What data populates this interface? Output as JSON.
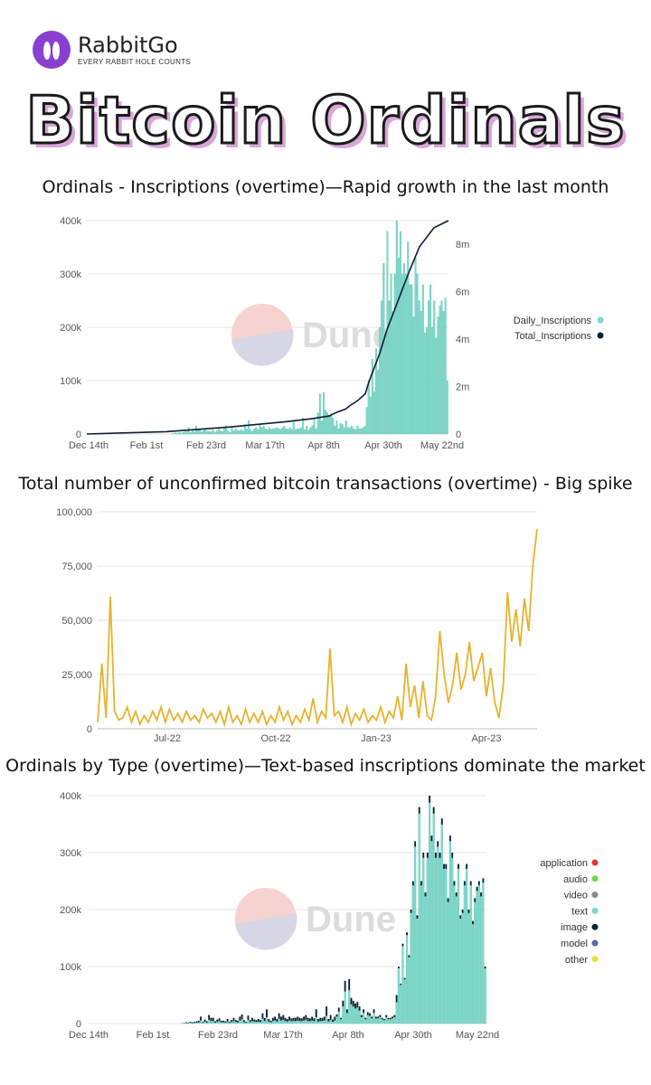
{
  "brand": {
    "name": "RabbitGo",
    "tagline": "EVERY RABBIT HOLE COUNTS"
  },
  "page_title": "Bitcoin Ordinals",
  "watermark": "Dune",
  "colors": {
    "teal": "#7fd8c8",
    "teal_edge": "#5cc3b2",
    "navy": "#0f1d33",
    "gold": "#e6b32e",
    "purple": "#8a3fd1",
    "title_shadow": "#d9a6d9"
  },
  "chart_data": [
    {
      "type": "bar",
      "title": "Ordinals - Inscriptions (overtime)—Rapid growth in the last month",
      "x_tick_labels": [
        "Dec 14th",
        "Feb 1st",
        "Feb 23rd",
        "Mar 17th",
        "Apr 8th",
        "Apr 30th",
        "May 22nd"
      ],
      "y_tick_labels": [
        "0",
        "100k",
        "200k",
        "300k",
        "400k"
      ],
      "y2_tick_labels": [
        "0",
        "2m",
        "4m",
        "6m",
        "8m"
      ],
      "ylim": [
        0,
        400000
      ],
      "y2lim": [
        0,
        9000000
      ],
      "grid": true,
      "legend_position": "right",
      "series": [
        {
          "name": "Daily_Inscriptions",
          "type": "bar",
          "color": "#7fd8c8",
          "values": [
            0,
            0,
            0,
            0,
            0,
            0,
            0,
            0,
            0,
            0,
            0,
            0,
            0,
            0,
            0,
            0,
            0,
            0,
            0,
            0,
            0,
            0,
            0,
            0,
            0,
            0,
            0,
            0,
            0,
            0,
            0,
            0,
            0,
            0,
            0,
            0,
            0,
            0,
            0,
            0,
            0,
            0,
            0,
            0,
            0,
            500,
            1000,
            2000,
            1500,
            3000,
            2000,
            3000,
            4000,
            5000,
            12000,
            3000,
            7000,
            4000,
            15000,
            10000,
            10000,
            4000,
            7000,
            9000,
            5000,
            5000,
            4000,
            8000,
            3000,
            6000,
            10000,
            6000,
            5000,
            12000,
            16000,
            6000,
            3000,
            14000,
            6000,
            10000,
            7000,
            6000,
            8000,
            6000,
            18000,
            10000,
            25000,
            8000,
            5000,
            10000,
            12000,
            8000,
            18000,
            12000,
            15000,
            10000,
            8000,
            12000,
            9000,
            10000,
            10000,
            12000,
            10000,
            9000,
            12000,
            15000,
            10000,
            9000,
            12000,
            9000,
            25000,
            8000,
            10000,
            10000,
            12000,
            30000,
            8000,
            15000,
            7000,
            12000,
            16000,
            28000,
            10000,
            40000,
            75000,
            25000,
            78000,
            45000,
            40000,
            35000,
            38000,
            30000,
            15000,
            25000,
            10000,
            20000,
            18000,
            12000,
            25000,
            12000,
            12000,
            15000,
            10000,
            8000,
            15000,
            10000,
            10000,
            12000,
            15000,
            50000,
            100000,
            70000,
            140000,
            80000,
            160000,
            120000,
            200000,
            250000,
            320000,
            190000,
            380000,
            250000,
            300000,
            230000,
            300000,
            400000,
            330000,
            380000,
            300000,
            320000,
            300000,
            360000,
            280000,
            280000,
            220000,
            330000,
            300000,
            250000,
            230000,
            280000,
            190000,
            200000,
            250000,
            280000,
            200000,
            250000,
            180000,
            220000,
            240000,
            250000,
            230000,
            255000,
            100000
          ]
        },
        {
          "name": "Total_Inscriptions",
          "type": "line",
          "color": "#0f1d33",
          "values": [
            0,
            100000,
            300000,
            520000,
            640000,
            760000,
            910000,
            1050000,
            1220000,
            1420000,
            1700000,
            2200000,
            3400000,
            4400000,
            5600000,
            6800000,
            7900000,
            8700000,
            9000000
          ],
          "x_positions": [
            0,
            0.22,
            0.4,
            0.55,
            0.62,
            0.67,
            0.69,
            0.715,
            0.73,
            0.75,
            0.77,
            0.78,
            0.81,
            0.83,
            0.86,
            0.89,
            0.92,
            0.96,
            1.0
          ]
        }
      ]
    },
    {
      "type": "line",
      "title": "Total number of unconfirmed bitcoin transactions (overtime) - Big spike",
      "x_tick_labels": [
        "Jul-22",
        "Oct-22",
        "Jan-23",
        "Apr-23"
      ],
      "y_tick_labels": [
        "0",
        "25,000",
        "50,000",
        "75,000",
        "100,000"
      ],
      "ylim": [
        0,
        100000
      ],
      "grid": true,
      "series": [
        {
          "name": "",
          "color": "#e6b32e",
          "values": [
            3000,
            30000,
            5000,
            61000,
            8000,
            4000,
            5000,
            10000,
            3000,
            8000,
            2000,
            6000,
            3000,
            8000,
            4000,
            10000,
            3000,
            9000,
            4000,
            7000,
            3000,
            8000,
            4000,
            6000,
            3000,
            9000,
            5000,
            7000,
            3000,
            8000,
            2000,
            10000,
            3000,
            6000,
            2000,
            9000,
            3000,
            7000,
            3000,
            8000,
            2000,
            6000,
            3000,
            10000,
            4000,
            8000,
            2000,
            6000,
            3000,
            9000,
            4000,
            14000,
            3000,
            8000,
            5000,
            37000,
            6000,
            8000,
            3000,
            10000,
            2000,
            7000,
            4000,
            9000,
            3000,
            6000,
            4000,
            10000,
            3000,
            8000,
            5000,
            15000,
            4000,
            30000,
            10000,
            20000,
            5000,
            22000,
            6000,
            4000,
            15000,
            45000,
            25000,
            12000,
            20000,
            35000,
            18000,
            25000,
            40000,
            22000,
            28000,
            35000,
            15000,
            28000,
            12000,
            5000,
            20000,
            63000,
            40000,
            55000,
            38000,
            60000,
            45000,
            75000,
            92000
          ]
        }
      ]
    },
    {
      "type": "bar",
      "title": "Ordinals by Type (overtime)—Text-based inscriptions dominate the market",
      "x_tick_labels": [
        "Dec 14th",
        "Feb 1st",
        "Feb 23rd",
        "Mar 17th",
        "Apr 8th",
        "Apr 30th",
        "May 22nd"
      ],
      "y_tick_labels": [
        "0",
        "100k",
        "200k",
        "300k",
        "400k"
      ],
      "ylim": [
        0,
        400000
      ],
      "grid": true,
      "legend_position": "right",
      "series": [
        {
          "name": "application",
          "color": "#e8352e"
        },
        {
          "name": "audio",
          "color": "#6fd84a"
        },
        {
          "name": "video",
          "color": "#8a8a8a"
        },
        {
          "name": "text",
          "color": "#7fd8c8"
        },
        {
          "name": "image",
          "color": "#0f1d33"
        },
        {
          "name": "model",
          "color": "#5a66a8"
        },
        {
          "name": "other",
          "color": "#e8e03a"
        }
      ]
    }
  ]
}
